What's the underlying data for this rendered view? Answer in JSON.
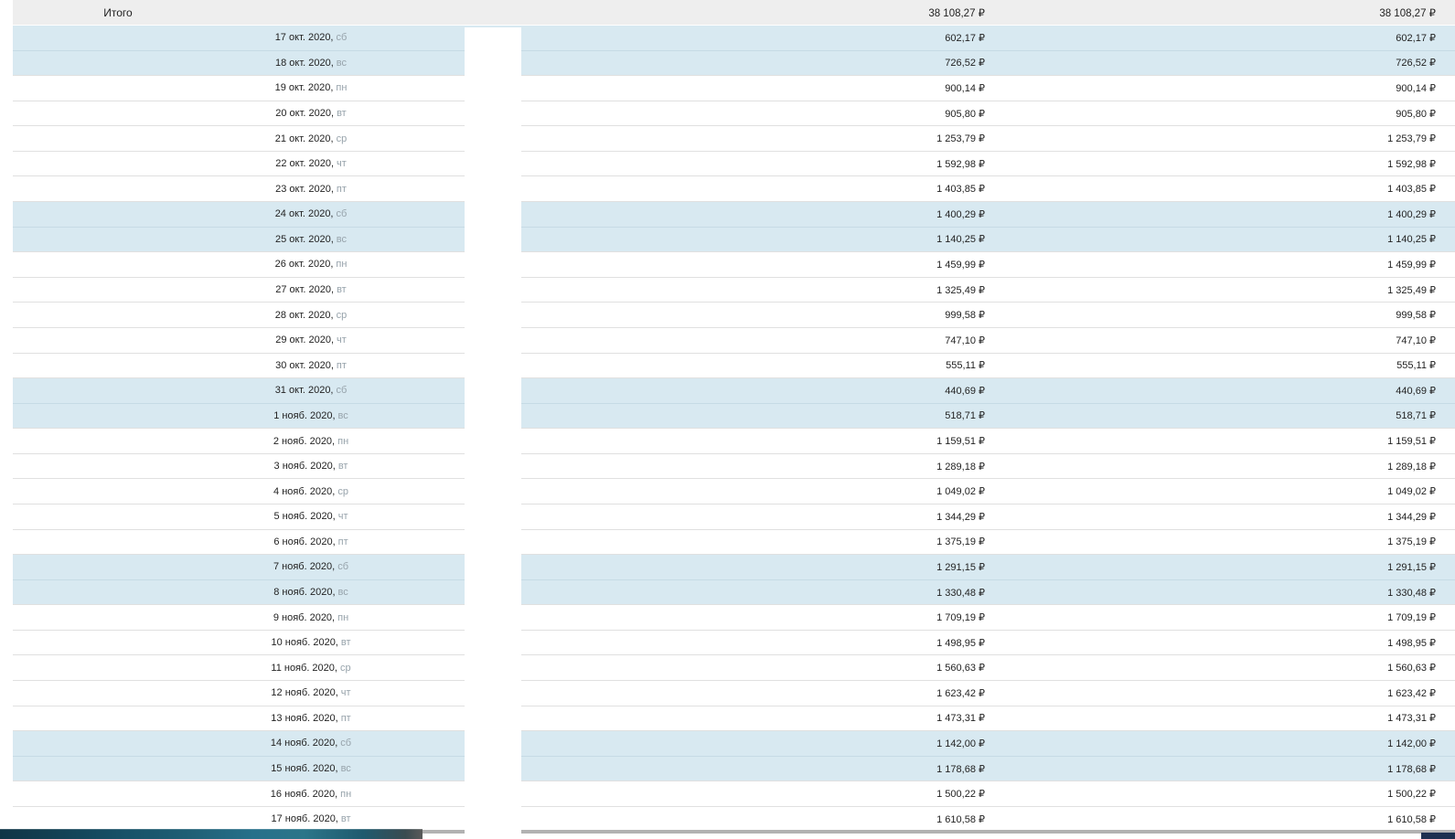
{
  "header": {
    "total_label": "Итого",
    "total_value_1": "38 108,27 ₽",
    "total_value_2": "38 108,27 ₽"
  },
  "colors": {
    "weekend_row_bg": "#d8e9f1",
    "header_row_bg": "#eeeeee",
    "row_border": "#e0e0e0",
    "secondary_text": "#97a3ab",
    "primary_text": "#222222",
    "scrollbar_track": "#b2b2b2",
    "scroll_corner": "#1d3050",
    "desktop_strip_teal": "#1f5f75"
  },
  "table": {
    "rows": [
      {
        "date": "17 окт. 2020,",
        "dow": "сб",
        "weekend": true,
        "value1": "602,17 ₽",
        "value2": "602,17 ₽"
      },
      {
        "date": "18 окт. 2020,",
        "dow": "вс",
        "weekend": true,
        "value1": "726,52 ₽",
        "value2": "726,52 ₽"
      },
      {
        "date": "19 окт. 2020,",
        "dow": "пн",
        "weekend": false,
        "value1": "900,14 ₽",
        "value2": "900,14 ₽"
      },
      {
        "date": "20 окт. 2020,",
        "dow": "вт",
        "weekend": false,
        "value1": "905,80 ₽",
        "value2": "905,80 ₽"
      },
      {
        "date": "21 окт. 2020,",
        "dow": "ср",
        "weekend": false,
        "value1": "1 253,79 ₽",
        "value2": "1 253,79 ₽"
      },
      {
        "date": "22 окт. 2020,",
        "dow": "чт",
        "weekend": false,
        "value1": "1 592,98 ₽",
        "value2": "1 592,98 ₽"
      },
      {
        "date": "23 окт. 2020,",
        "dow": "пт",
        "weekend": false,
        "value1": "1 403,85 ₽",
        "value2": "1 403,85 ₽"
      },
      {
        "date": "24 окт. 2020,",
        "dow": "сб",
        "weekend": true,
        "value1": "1 400,29 ₽",
        "value2": "1 400,29 ₽"
      },
      {
        "date": "25 окт. 2020,",
        "dow": "вс",
        "weekend": true,
        "value1": "1 140,25 ₽",
        "value2": "1 140,25 ₽"
      },
      {
        "date": "26 окт. 2020,",
        "dow": "пн",
        "weekend": false,
        "value1": "1 459,99 ₽",
        "value2": "1 459,99 ₽"
      },
      {
        "date": "27 окт. 2020,",
        "dow": "вт",
        "weekend": false,
        "value1": "1 325,49 ₽",
        "value2": "1 325,49 ₽"
      },
      {
        "date": "28 окт. 2020,",
        "dow": "ср",
        "weekend": false,
        "value1": "999,58 ₽",
        "value2": "999,58 ₽"
      },
      {
        "date": "29 окт. 2020,",
        "dow": "чт",
        "weekend": false,
        "value1": "747,10 ₽",
        "value2": "747,10 ₽"
      },
      {
        "date": "30 окт. 2020,",
        "dow": "пт",
        "weekend": false,
        "value1": "555,11 ₽",
        "value2": "555,11 ₽"
      },
      {
        "date": "31 окт. 2020,",
        "dow": "сб",
        "weekend": true,
        "value1": "440,69 ₽",
        "value2": "440,69 ₽"
      },
      {
        "date": "1 нояб. 2020,",
        "dow": "вс",
        "weekend": true,
        "value1": "518,71 ₽",
        "value2": "518,71 ₽"
      },
      {
        "date": "2 нояб. 2020,",
        "dow": "пн",
        "weekend": false,
        "value1": "1 159,51 ₽",
        "value2": "1 159,51 ₽"
      },
      {
        "date": "3 нояб. 2020,",
        "dow": "вт",
        "weekend": false,
        "value1": "1 289,18 ₽",
        "value2": "1 289,18 ₽"
      },
      {
        "date": "4 нояб. 2020,",
        "dow": "ср",
        "weekend": false,
        "value1": "1 049,02 ₽",
        "value2": "1 049,02 ₽"
      },
      {
        "date": "5 нояб. 2020,",
        "dow": "чт",
        "weekend": false,
        "value1": "1 344,29 ₽",
        "value2": "1 344,29 ₽"
      },
      {
        "date": "6 нояб. 2020,",
        "dow": "пт",
        "weekend": false,
        "value1": "1 375,19 ₽",
        "value2": "1 375,19 ₽"
      },
      {
        "date": "7 нояб. 2020,",
        "dow": "сб",
        "weekend": true,
        "value1": "1 291,15 ₽",
        "value2": "1 291,15 ₽"
      },
      {
        "date": "8 нояб. 2020,",
        "dow": "вс",
        "weekend": true,
        "value1": "1 330,48 ₽",
        "value2": "1 330,48 ₽"
      },
      {
        "date": "9 нояб. 2020,",
        "dow": "пн",
        "weekend": false,
        "value1": "1 709,19 ₽",
        "value2": "1 709,19 ₽"
      },
      {
        "date": "10 нояб. 2020,",
        "dow": "вт",
        "weekend": false,
        "value1": "1 498,95 ₽",
        "value2": "1 498,95 ₽"
      },
      {
        "date": "11 нояб. 2020,",
        "dow": "ср",
        "weekend": false,
        "value1": "1 560,63 ₽",
        "value2": "1 560,63 ₽"
      },
      {
        "date": "12 нояб. 2020,",
        "dow": "чт",
        "weekend": false,
        "value1": "1 623,42 ₽",
        "value2": "1 623,42 ₽"
      },
      {
        "date": "13 нояб. 2020,",
        "dow": "пт",
        "weekend": false,
        "value1": "1 473,31 ₽",
        "value2": "1 473,31 ₽"
      },
      {
        "date": "14 нояб. 2020,",
        "dow": "сб",
        "weekend": true,
        "value1": "1 142,00 ₽",
        "value2": "1 142,00 ₽"
      },
      {
        "date": "15 нояб. 2020,",
        "dow": "вс",
        "weekend": true,
        "value1": "1 178,68 ₽",
        "value2": "1 178,68 ₽"
      },
      {
        "date": "16 нояб. 2020,",
        "dow": "пн",
        "weekend": false,
        "value1": "1 500,22 ₽",
        "value2": "1 500,22 ₽"
      },
      {
        "date": "17 нояб. 2020,",
        "dow": "вт",
        "weekend": false,
        "value1": "1 610,58 ₽",
        "value2": "1 610,58 ₽"
      }
    ]
  }
}
